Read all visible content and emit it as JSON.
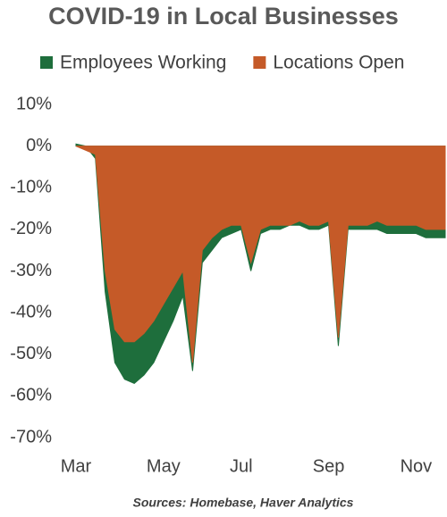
{
  "chart_data": {
    "type": "area",
    "title": "COVID-19 in Local Businesses",
    "source": "Sources: Homebase, Haver Analytics",
    "legend": "top",
    "categories": [
      "Mar",
      null,
      null,
      null,
      null,
      null,
      null,
      null,
      null,
      "May",
      null,
      null,
      null,
      null,
      null,
      null,
      null,
      "Jul",
      null,
      null,
      null,
      null,
      null,
      null,
      null,
      null,
      "Sep",
      null,
      null,
      null,
      null,
      null,
      null,
      null,
      null,
      "Nov",
      null,
      null,
      null
    ],
    "series": [
      {
        "name": "Employees Working",
        "color": "#1e6e3c",
        "values": [
          0.5,
          0,
          -3,
          -35,
          -52,
          -56,
          -57,
          -55,
          -52,
          -47,
          -42,
          -36,
          -54,
          -28,
          -25,
          -22,
          -21,
          -20,
          -30,
          -21,
          -20,
          -20,
          -19,
          -19,
          -20,
          -20,
          -19,
          -48,
          -20,
          -20,
          -20,
          -20,
          -21,
          -21,
          -21,
          -21,
          -22,
          -22,
          -22
        ]
      },
      {
        "name": "Locations Open",
        "color": "#c55a28",
        "values": [
          0,
          -1,
          -2,
          -30,
          -44,
          -47,
          -47,
          -45,
          -42,
          -38,
          -34,
          -30,
          -52,
          -25,
          -22,
          -20,
          -19,
          -19,
          -28,
          -20,
          -19,
          -19,
          -19,
          -18,
          -19,
          -19,
          -18,
          -46,
          -19,
          -19,
          -19,
          -18,
          -19,
          -19,
          -19,
          -19,
          -20,
          -20,
          -20
        ]
      }
    ],
    "ylim": [
      -70,
      10
    ],
    "yticks": [
      {
        "value": 10,
        "label": "10%"
      },
      {
        "value": 0,
        "label": "0%"
      },
      {
        "value": -10,
        "label": "-10%"
      },
      {
        "value": -20,
        "label": "-20%"
      },
      {
        "value": -30,
        "label": "-30%"
      },
      {
        "value": -40,
        "label": "-40%"
      },
      {
        "value": -50,
        "label": "-50%"
      },
      {
        "value": -60,
        "label": "-60%"
      },
      {
        "value": -70,
        "label": "-70%"
      }
    ],
    "grid": false
  }
}
